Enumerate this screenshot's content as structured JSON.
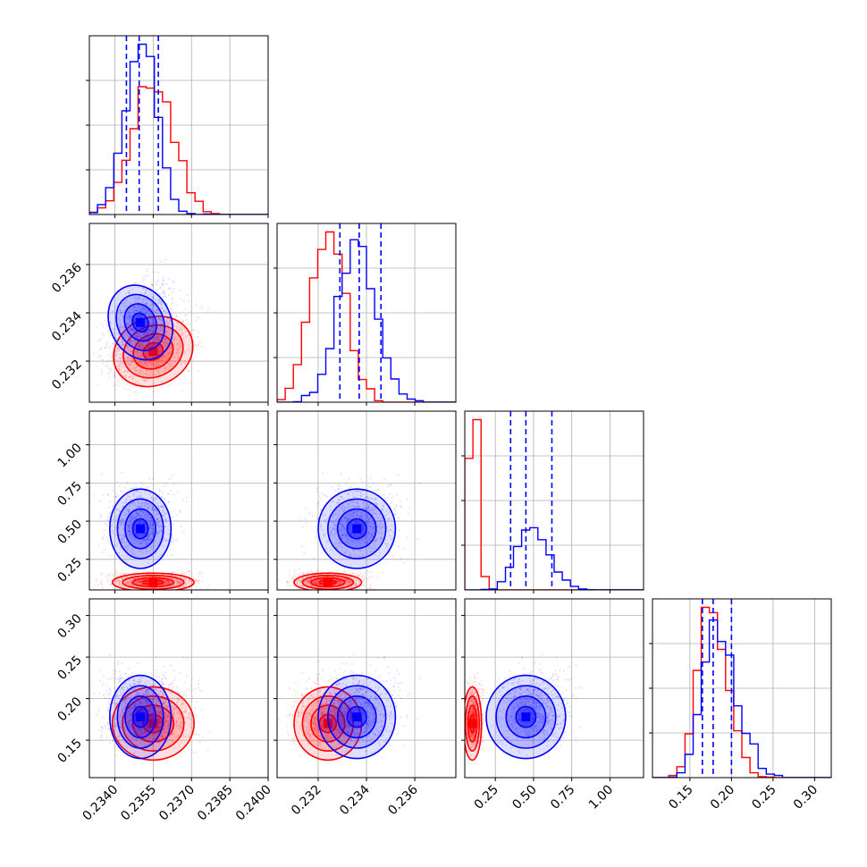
{
  "chart_data": {
    "type": "scatter",
    "colors": {
      "series_a": "#0000ff",
      "series_b": "#ff0000"
    },
    "grid": true,
    "params": [
      {
        "id": "p0",
        "range": [
          0.233,
          0.24
        ],
        "ticks": [
          "0.2340",
          "0.2355",
          "0.2370",
          "0.2385",
          "0.2400"
        ],
        "tickvals": [
          0.234,
          0.2355,
          0.237,
          0.2385,
          0.24
        ],
        "quantile_lines": [
          0.23445,
          0.23495,
          0.2357
        ]
      },
      {
        "id": "p1",
        "range": [
          0.2303,
          0.2377
        ],
        "ticks": [
          "0.232",
          "0.234",
          "0.236"
        ],
        "tickvals": [
          0.232,
          0.234,
          0.236
        ],
        "quantile_lines": [
          0.2329,
          0.2337,
          0.2346
        ]
      },
      {
        "id": "p2",
        "range": [
          0.05,
          1.22
        ],
        "ticks": [
          "0.25",
          "0.50",
          "0.75",
          "1.00"
        ],
        "tickvals": [
          0.25,
          0.5,
          0.75,
          1.0
        ],
        "quantile_lines": [
          0.35,
          0.45,
          0.62
        ]
      },
      {
        "id": "p3",
        "range": [
          0.105,
          0.32
        ],
        "ticks": [
          "0.15",
          "0.20",
          "0.25",
          "0.30"
        ],
        "tickvals": [
          0.15,
          0.2,
          0.25,
          0.3
        ],
        "quantile_lines": [
          0.165,
          0.178,
          0.2
        ]
      }
    ],
    "series": [
      {
        "name": "",
        "color": "#0000ff",
        "mean": [
          0.235,
          0.2336,
          0.45,
          0.178
        ],
        "sd": [
          0.0006,
          0.0008,
          0.13,
          0.025
        ]
      },
      {
        "name": "",
        "color": "#ff0000",
        "mean": [
          0.2355,
          0.2324,
          0.1,
          0.17
        ],
        "sd": [
          0.0008,
          0.0007,
          0.03,
          0.022
        ]
      }
    ]
  }
}
